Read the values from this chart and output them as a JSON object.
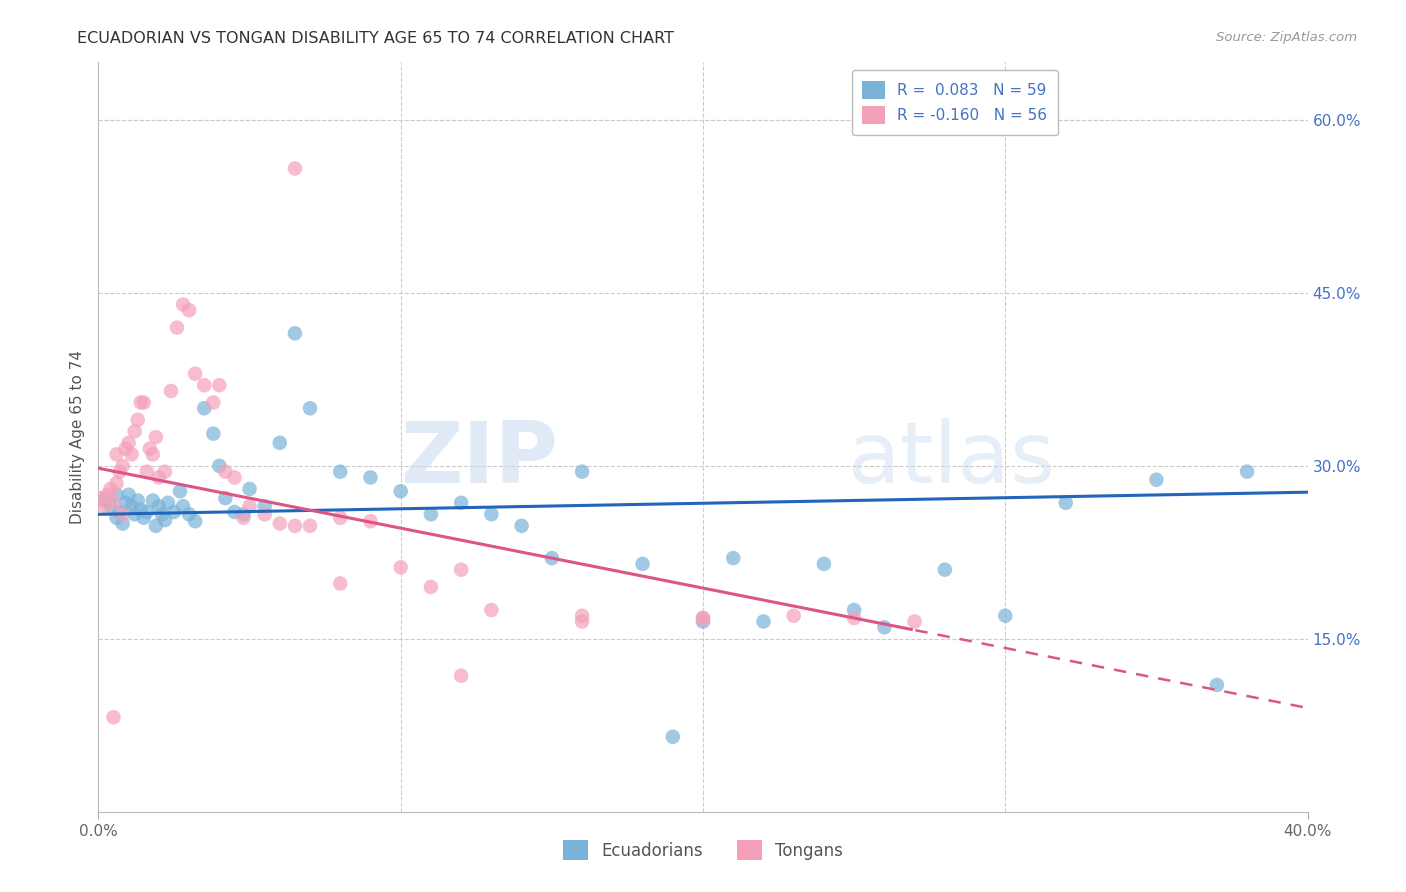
{
  "title": "ECUADORIAN VS TONGAN DISABILITY AGE 65 TO 74 CORRELATION CHART",
  "source": "Source: ZipAtlas.com",
  "ylabel": "Disability Age 65 to 74",
  "x_min": 0.0,
  "x_max": 0.4,
  "y_min": 0.0,
  "y_max": 0.65,
  "legend_label1": "R =  0.083   N = 59",
  "legend_label2": "R = -0.160   N = 56",
  "color_blue": "#7ab3d8",
  "color_pink": "#f4a0b8",
  "trend_blue": "#2266bb",
  "trend_pink": "#dd5588",
  "watermark_zip": "ZIP",
  "watermark_atlas": "atlas",
  "background_color": "#ffffff",
  "grid_color": "#cccccc",
  "ecuadorians_x": [
    0.002,
    0.004,
    0.006,
    0.006,
    0.007,
    0.008,
    0.009,
    0.01,
    0.011,
    0.012,
    0.013,
    0.014,
    0.015,
    0.016,
    0.018,
    0.019,
    0.02,
    0.021,
    0.022,
    0.023,
    0.025,
    0.027,
    0.028,
    0.03,
    0.032,
    0.035,
    0.038,
    0.04,
    0.042,
    0.045,
    0.048,
    0.05,
    0.055,
    0.06,
    0.065,
    0.07,
    0.08,
    0.09,
    0.1,
    0.11,
    0.12,
    0.13,
    0.14,
    0.15,
    0.16,
    0.18,
    0.2,
    0.21,
    0.22,
    0.25,
    0.26,
    0.28,
    0.3,
    0.32,
    0.35,
    0.37,
    0.38,
    0.24,
    0.19
  ],
  "ecuadorians_y": [
    0.27,
    0.265,
    0.255,
    0.275,
    0.26,
    0.25,
    0.268,
    0.275,
    0.265,
    0.258,
    0.27,
    0.262,
    0.255,
    0.26,
    0.27,
    0.248,
    0.265,
    0.258,
    0.253,
    0.268,
    0.26,
    0.278,
    0.265,
    0.258,
    0.252,
    0.35,
    0.328,
    0.3,
    0.272,
    0.26,
    0.258,
    0.28,
    0.265,
    0.32,
    0.415,
    0.35,
    0.295,
    0.29,
    0.278,
    0.258,
    0.268,
    0.258,
    0.248,
    0.22,
    0.295,
    0.215,
    0.165,
    0.22,
    0.165,
    0.175,
    0.16,
    0.21,
    0.17,
    0.268,
    0.288,
    0.11,
    0.295,
    0.215,
    0.065
  ],
  "tongans_x": [
    0.001,
    0.002,
    0.003,
    0.004,
    0.005,
    0.006,
    0.006,
    0.007,
    0.008,
    0.009,
    0.01,
    0.011,
    0.012,
    0.013,
    0.014,
    0.015,
    0.016,
    0.017,
    0.018,
    0.019,
    0.02,
    0.022,
    0.024,
    0.026,
    0.028,
    0.03,
    0.032,
    0.035,
    0.038,
    0.04,
    0.042,
    0.045,
    0.048,
    0.05,
    0.055,
    0.06,
    0.065,
    0.07,
    0.08,
    0.09,
    0.1,
    0.11,
    0.12,
    0.13,
    0.16,
    0.2,
    0.23,
    0.25,
    0.27,
    0.065,
    0.005,
    0.008,
    0.12,
    0.16,
    0.2,
    0.08
  ],
  "tongans_y": [
    0.272,
    0.265,
    0.275,
    0.28,
    0.268,
    0.285,
    0.31,
    0.295,
    0.3,
    0.315,
    0.32,
    0.31,
    0.33,
    0.34,
    0.355,
    0.355,
    0.295,
    0.315,
    0.31,
    0.325,
    0.29,
    0.295,
    0.365,
    0.42,
    0.44,
    0.435,
    0.38,
    0.37,
    0.355,
    0.37,
    0.295,
    0.29,
    0.255,
    0.265,
    0.258,
    0.25,
    0.248,
    0.248,
    0.255,
    0.252,
    0.212,
    0.195,
    0.21,
    0.175,
    0.165,
    0.168,
    0.17,
    0.168,
    0.165,
    0.558,
    0.082,
    0.258,
    0.118,
    0.17,
    0.168,
    0.198
  ]
}
